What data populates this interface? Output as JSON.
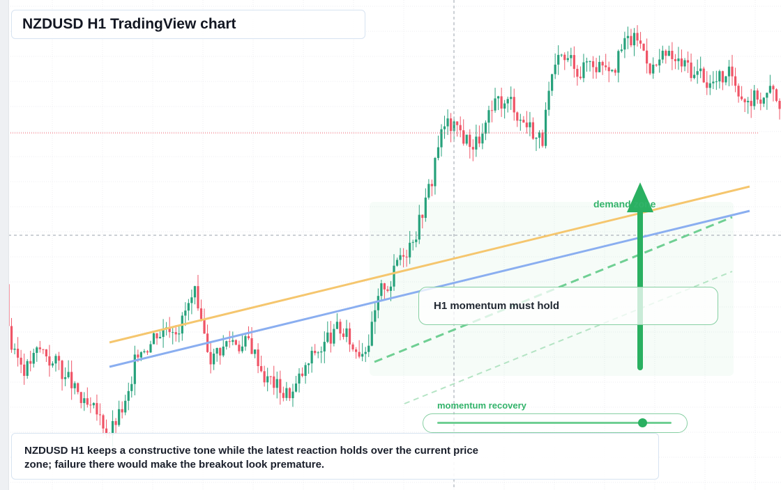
{
  "title": "NZDUSD H1 TradingView chart",
  "callout": {
    "text": "H1 momentum must hold"
  },
  "zone_label": "demand zone",
  "recovery": {
    "label": "momentum recovery",
    "level_fraction": 0.87
  },
  "note": "NZDUSD H1 keeps a constructive tone while the latest reaction holds over the current price zone; failure there would make the breakout look premature.",
  "colors": {
    "bull": "#26a17b",
    "bear": "#ef5466",
    "trend_orange": "#f5c66e",
    "trend_blue": "#8aaef0",
    "signal_green": "#2ab061",
    "price_line": "#ef5466"
  },
  "chart_data": {
    "type": "candlestick",
    "symbol": "NZDUSD",
    "timeframe": "H1",
    "grid": true,
    "ylim": [
      0,
      100
    ],
    "x": [
      0,
      244
    ],
    "current_price": 81.8,
    "crosshair": {
      "x": 114,
      "y": 64.5
    },
    "candles": [
      [
        1,
        76,
        102,
        39,
        14,
        20
      ],
      [
        2,
        79,
        79,
        37,
        17,
        20
      ],
      [
        2,
        75,
        75,
        36,
        16,
        20
      ],
      [
        1,
        76,
        79,
        37,
        16,
        20
      ],
      [
        2,
        75,
        96,
        47,
        17,
        20
      ],
      [
        2,
        78,
        79,
        34,
        11,
        20
      ],
      [
        2,
        76,
        76,
        37,
        17,
        20
      ],
      [
        1,
        76,
        81,
        40,
        18,
        20
      ],
      [
        3,
        9,
        41,
        17,
        15,
        20
      ],
      [
        3,
        13,
        32,
        34,
        9,
        20
      ],
      [
        3,
        14,
        28,
        10,
        16,
        20
      ],
      [
        3,
        18,
        21,
        19,
        1,
        10
      ],
      [
        4,
        23,
        21,
        27,
        23,
        21
      ],
      [
        4,
        24,
        22,
        28,
        24,
        22
      ],
      [
        5,
        29,
        28,
        30,
        29,
        28
      ],
      [
        5,
        30,
        25,
        31,
        30,
        25
      ],
      [
        6,
        32,
        32,
        30,
        31,
        31
      ],
      [
        6,
        33,
        34,
        31,
        32,
        33
      ],
      [
        7,
        35,
        30,
        41,
        35,
        40
      ],
      [
        7,
        36,
        39,
        33,
        33,
        38
      ],
      [
        8,
        37,
        39,
        35,
        36,
        38
      ],
      [
        8,
        38,
        36,
        33,
        34,
        35
      ],
      [
        9,
        39,
        41,
        43,
        39,
        45
      ],
      [
        9,
        41,
        33,
        44,
        44,
        33
      ],
      [
        10,
        42,
        46,
        47,
        36,
        41
      ],
      [
        10,
        43,
        47,
        51,
        42,
        49
      ],
      [
        11,
        44,
        43,
        45,
        47,
        43
      ],
      [
        11,
        46,
        43,
        42,
        41,
        43
      ],
      [
        12,
        47,
        49,
        44,
        42,
        48
      ],
      [
        12,
        48,
        53,
        50,
        48,
        52
      ],
      [
        13,
        49,
        53,
        46,
        53,
        50
      ],
      [
        13,
        51,
        53,
        50,
        52,
        53
      ]
    ]
  }
}
